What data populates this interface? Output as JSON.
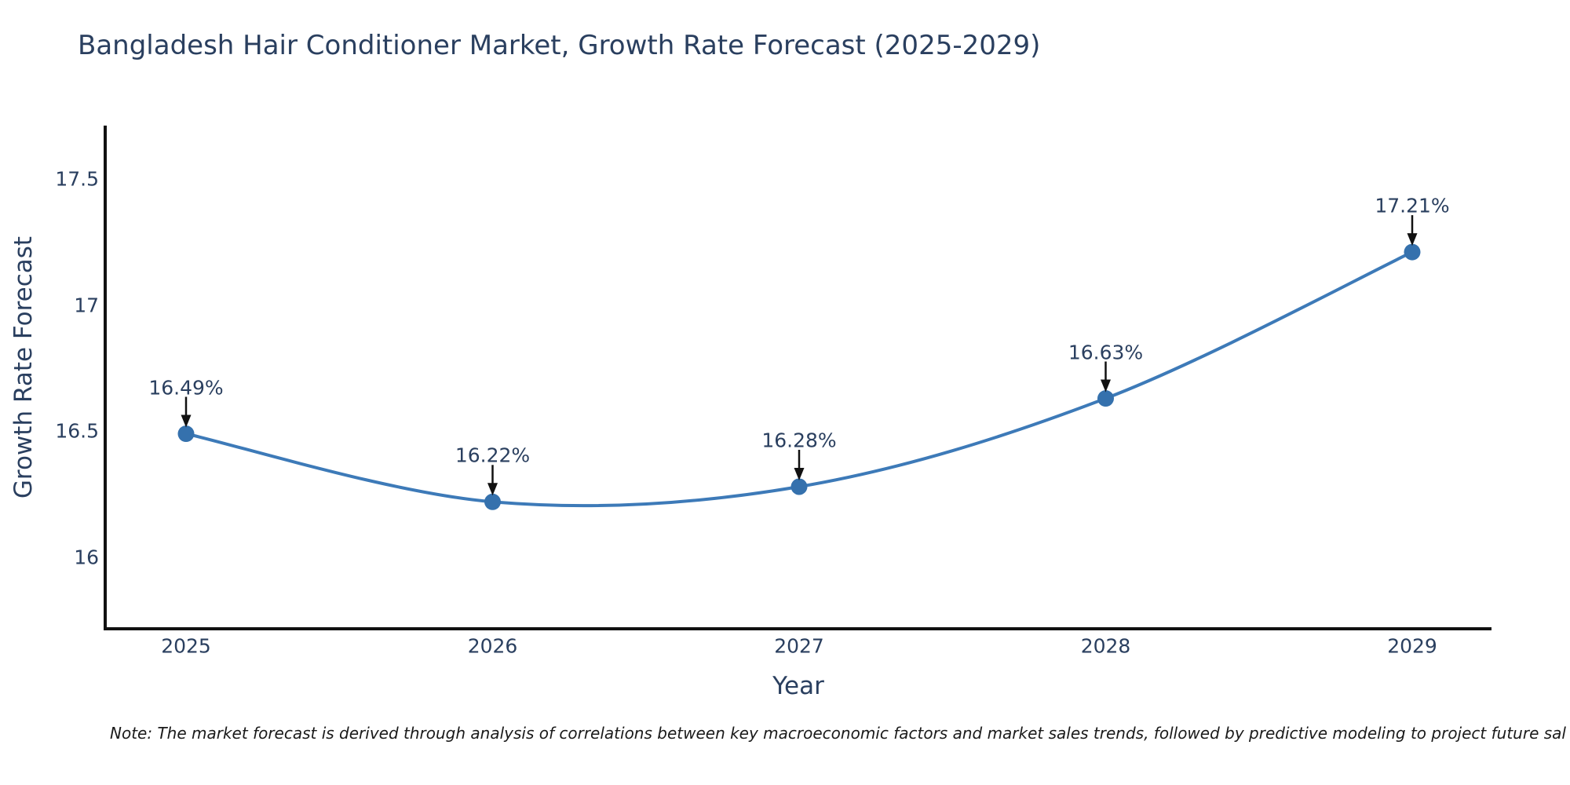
{
  "title": "Bangladesh Hair Conditioner Market, Growth Rate Forecast (2025-2029)",
  "note": "Note: The market forecast is derived through analysis of correlations between key macroeconomic factors and market sales trends, followed by predictive modeling to project future sal",
  "chart_data": {
    "type": "line",
    "title": "Bangladesh Hair Conditioner Market, Growth Rate Forecast (2025-2029)",
    "xlabel": "Year",
    "ylabel": "Growth Rate Forecast",
    "x": [
      2025,
      2026,
      2027,
      2028,
      2029
    ],
    "series": [
      {
        "name": "Growth Rate Forecast",
        "values": [
          16.49,
          16.22,
          16.28,
          16.63,
          17.21
        ]
      }
    ],
    "point_labels": [
      "16.49%",
      "16.22%",
      "16.28%",
      "16.63%",
      "17.21%"
    ],
    "xtick_labels": [
      "2025",
      "2026",
      "2027",
      "2028",
      "2029"
    ],
    "yticks": [
      16,
      16.5,
      17,
      17.5
    ],
    "ytick_labels": [
      "16",
      "16.5",
      "17",
      "17.5"
    ],
    "ylim": [
      15.72,
      17.71
    ],
    "xlim": [
      2024.74,
      2029.26
    ],
    "grid": false,
    "legend_position": "none",
    "line_shape": "spline",
    "markers": true,
    "annotation_arrows": true,
    "colors": {
      "line": "#3d7ab8",
      "marker": "#3571ad",
      "axis": "#111111",
      "text": "#2a3f5f",
      "arrow": "#111111",
      "note_text": "#1a1a1a",
      "background": "#ffffff"
    }
  }
}
